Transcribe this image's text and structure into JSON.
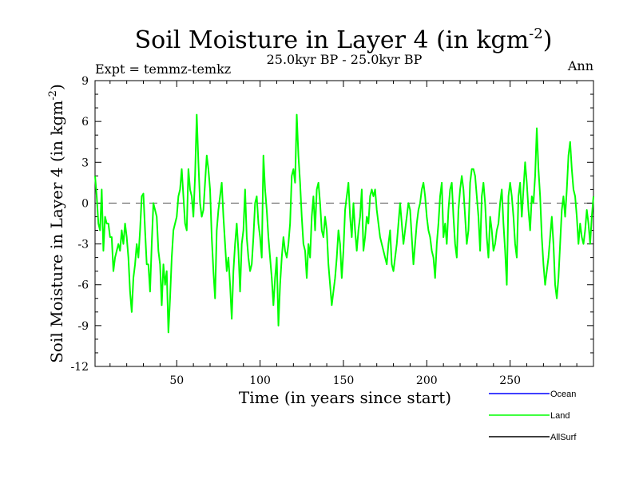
{
  "chart_data": {
    "type": "line",
    "title": "Soil Moisture in Layer 4 (in kgm",
    "title_superscript": "-2",
    "title_close": ")",
    "subtitle": "25.0kyr BP - 25.0kyr BP",
    "left_label": "Expt = temmz-temkz",
    "right_label": "Ann",
    "xlabel": "Time (in years since start)",
    "ylabel": "Soil Moisture in Layer 4 (in kgm",
    "ylabel_superscript": "-2",
    "ylabel_close": ")",
    "xlim": [
      1,
      300
    ],
    "ylim": [
      -12,
      9
    ],
    "x_ticks": [
      50,
      100,
      150,
      200,
      250
    ],
    "x_tick_labels": [
      "50",
      "100",
      "150",
      "200",
      "250"
    ],
    "y_ticks": [
      -12,
      -9,
      -6,
      -3,
      0,
      3,
      6,
      9
    ],
    "y_tick_labels": [
      "-12",
      "-9",
      "-6",
      "-3",
      "0",
      "3",
      "6",
      "9"
    ],
    "zero_line": 0,
    "legend_position": "bottom-right",
    "colors": {
      "Ocean": "#0000ff",
      "Land": "#00ff00",
      "AllSurf": "#000000",
      "zero_line": "#555555"
    },
    "series": [
      {
        "name": "Ocean",
        "values": []
      },
      {
        "name": "Land",
        "x_start": 1,
        "x_step": 1,
        "values": [
          2.0,
          0.5,
          -1.5,
          -2.0,
          1.0,
          -3.5,
          -1.0,
          -1.5,
          -1.5,
          -2.5,
          -2.5,
          -5.0,
          -4.0,
          -3.5,
          -3.0,
          -3.5,
          -2.0,
          -3.0,
          -1.5,
          -2.5,
          -4.0,
          -6.5,
          -8.0,
          -5.5,
          -4.5,
          -3.0,
          -4.0,
          -2.0,
          0.5,
          0.7,
          -2.0,
          -4.5,
          -4.5,
          -6.5,
          -3.0,
          0.0,
          -0.5,
          -1.0,
          -3.5,
          -4.5,
          -7.5,
          -4.5,
          -6.0,
          -5.0,
          -9.5,
          -7.0,
          -4.0,
          -2.0,
          -1.5,
          -1.0,
          0.5,
          1.0,
          2.5,
          0.5,
          -1.5,
          -2.0,
          2.5,
          1.0,
          0.5,
          -1.0,
          2.0,
          6.5,
          3.0,
          0.0,
          -1.0,
          -0.5,
          1.5,
          3.5,
          2.5,
          1.0,
          -2.5,
          -5.0,
          -7.0,
          -2.0,
          -0.5,
          0.5,
          1.5,
          -1.0,
          -3.0,
          -5.0,
          -4.0,
          -6.0,
          -8.5,
          -5.0,
          -3.0,
          -1.5,
          -3.5,
          -6.5,
          -3.0,
          -2.0,
          1.0,
          -2.5,
          -4.0,
          -5.0,
          -4.5,
          -2.5,
          0.0,
          0.5,
          -1.5,
          -2.5,
          -4.0,
          3.5,
          1.0,
          -0.5,
          -2.5,
          -4.0,
          -5.5,
          -7.5,
          -5.5,
          -4.0,
          -9.0,
          -6.0,
          -4.0,
          -2.5,
          -3.5,
          -4.0,
          -3.0,
          -1.5,
          2.0,
          2.5,
          1.5,
          6.5,
          3.5,
          1.5,
          -1.0,
          -3.0,
          -3.5,
          -5.5,
          -3.0,
          -4.0,
          -1.0,
          0.5,
          -2.0,
          1.0,
          1.5,
          0.0,
          -2.0,
          -2.5,
          -1.0,
          -2.0,
          -4.5,
          -6.0,
          -7.5,
          -6.5,
          -5.5,
          -4.0,
          -2.0,
          -3.0,
          -5.5,
          -3.5,
          -0.5,
          0.5,
          1.5,
          -1.0,
          -2.5,
          0.0,
          -2.0,
          -3.5,
          -2.0,
          -1.0,
          1.0,
          -3.5,
          -2.5,
          -1.0,
          -1.5,
          0.5,
          1.0,
          0.5,
          1.0,
          -0.5,
          -1.5,
          -2.5,
          -3.0,
          -3.5,
          -4.0,
          -4.5,
          -3.0,
          -2.0,
          -4.5,
          -5.0,
          -4.0,
          -3.0,
          -1.5,
          0.0,
          -1.5,
          -3.0,
          -2.0,
          -1.0,
          0.0,
          -0.5,
          -2.5,
          -4.5,
          -3.0,
          -1.5,
          -0.5,
          0.0,
          1.0,
          1.5,
          0.5,
          -1.0,
          -2.0,
          -2.5,
          -3.5,
          -4.0,
          -5.5,
          -3.0,
          -1.5,
          0.5,
          1.5,
          -2.5,
          -1.5,
          -3.0,
          -0.5,
          1.0,
          1.5,
          -1.0,
          -3.0,
          -4.0,
          -0.5,
          1.0,
          2.0,
          1.0,
          -1.0,
          -3.0,
          -2.0,
          1.5,
          2.5,
          2.5,
          2.0,
          0.5,
          -1.0,
          -3.5,
          0.5,
          1.5,
          0.0,
          -2.5,
          -4.0,
          -1.0,
          -2.0,
          -3.5,
          -3.0,
          -2.0,
          -1.5,
          0.0,
          1.0,
          -1.5,
          -3.5,
          -6.0,
          0.5,
          1.5,
          0.5,
          -1.0,
          -3.0,
          -4.0,
          0.5,
          1.5,
          -1.0,
          1.0,
          3.0,
          1.5,
          -0.5,
          -2.0,
          0.5,
          0.0,
          2.0,
          5.5,
          2.5,
          0.5,
          -2.5,
          -4.5,
          -6.0,
          -5.0,
          -4.0,
          -2.5,
          -1.0,
          -3.0,
          -6.0,
          -7.0,
          -5.5,
          -3.0,
          -0.5,
          0.5,
          -1.0,
          1.0,
          3.5,
          4.5,
          2.5,
          1.0,
          0.5,
          -1.0,
          -3.0,
          -1.5,
          -2.5,
          -3.0,
          -2.0,
          -0.5,
          -1.5,
          -3.0,
          -1.0,
          0.5
        ]
      },
      {
        "name": "AllSurf",
        "values": []
      }
    ]
  }
}
